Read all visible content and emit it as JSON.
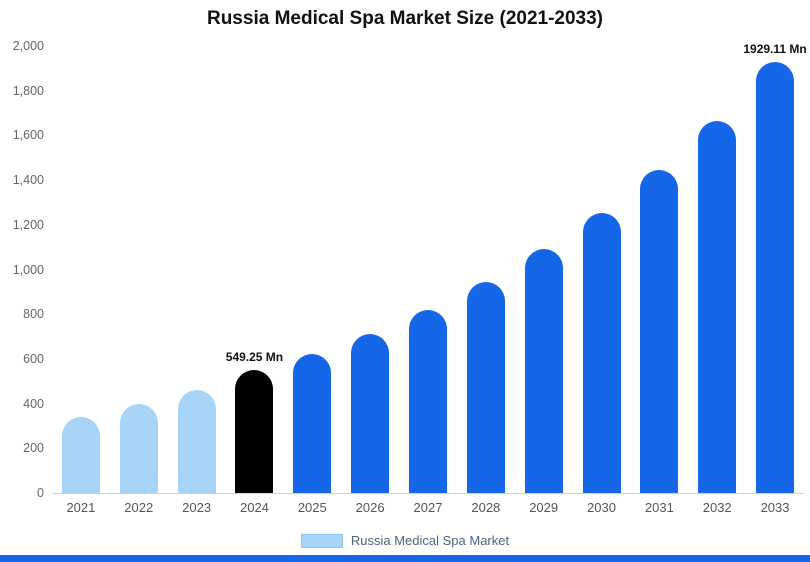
{
  "chart_data": {
    "type": "bar",
    "title": "Russia Medical Spa Market Size (2021-2033)",
    "categories": [
      "2021",
      "2022",
      "2023",
      "2024",
      "2025",
      "2026",
      "2027",
      "2028",
      "2029",
      "2030",
      "2031",
      "2032",
      "2033"
    ],
    "values": [
      340,
      400,
      460,
      549.25,
      620,
      710,
      820,
      945,
      1090,
      1255,
      1445,
      1665,
      1929.11
    ],
    "bar_labels": [
      "",
      "",
      "",
      "549.25 Mn",
      "",
      "",
      "",
      "",
      "",
      "",
      "",
      "",
      "1929.11 Mn"
    ],
    "bar_colors": [
      "#A8D4F8",
      "#A8D4F8",
      "#A8D4F8",
      "#000000",
      "#1567E8",
      "#1567E8",
      "#1567E8",
      "#1567E8",
      "#1567E8",
      "#1567E8",
      "#1567E8",
      "#1567E8",
      "#1567E8"
    ],
    "xlabel": "",
    "ylabel": "",
    "ylim": [
      0,
      2000
    ],
    "yticks": [
      0,
      200,
      400,
      600,
      800,
      1000,
      1200,
      1400,
      1600,
      1800,
      2000
    ],
    "ytick_labels": [
      "0",
      "200",
      "400",
      "600",
      "800",
      "1,000",
      "1,200",
      "1,400",
      "1,600",
      "1,800",
      "2,000"
    ],
    "grid": false,
    "legend_position": "bottom",
    "series_name": "Russia Medical Spa Market"
  },
  "legend": {
    "label": "Russia Medical Spa Market",
    "swatch_color": "#A8D4F8"
  },
  "colors": {
    "light_blue": "#A8D4F8",
    "highlight_black": "#000000",
    "primary_blue": "#1567E8",
    "footer_strip": "#1567E8",
    "axis_line": "#CFCFCF",
    "tick_text": "#666666"
  }
}
